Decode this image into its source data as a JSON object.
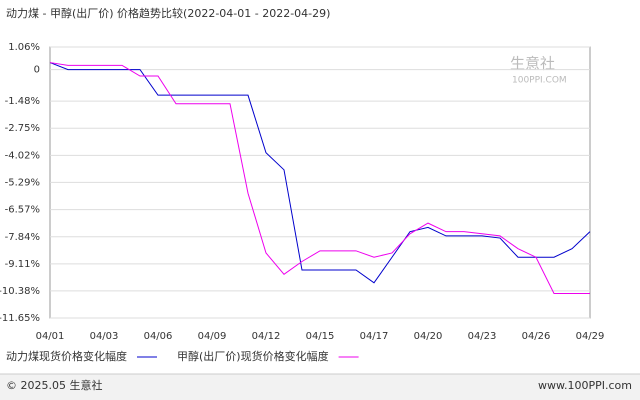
{
  "chart_data": {
    "type": "line",
    "title": "动力煤 - 甲醇(出厂价) 价格趋势比较(2022-04-01 - 2022-04-29)",
    "categories": [
      "04/01",
      null,
      null,
      "04/03",
      null,
      null,
      "04/06",
      null,
      null,
      "04/09",
      null,
      null,
      "04/12",
      null,
      null,
      "04/15",
      null,
      null,
      "04/17",
      null,
      null,
      "04/20",
      null,
      null,
      "04/23",
      null,
      null,
      "04/26",
      null,
      null,
      "04/29"
    ],
    "series": [
      {
        "name": "动力煤现货价格变化幅度",
        "color": "#0000cc",
        "values": [
          0.33,
          0,
          0,
          0,
          0,
          0,
          -1.2,
          -1.2,
          -1.2,
          -1.2,
          -1.2,
          -1.2,
          -3.9,
          -4.7,
          -9.4,
          -9.4,
          -9.4,
          -9.4,
          -10.0,
          -8.8,
          -7.6,
          -7.4,
          -7.8,
          -7.8,
          -7.8,
          -7.9,
          -8.8,
          -8.8,
          -8.8,
          -8.4,
          -7.6
        ]
      },
      {
        "name": "甲醇(出厂价)现货价格变化幅度",
        "color": "#ee00ee",
        "values": [
          0.33,
          0.2,
          0.2,
          0.2,
          0.2,
          -0.3,
          -0.3,
          -1.6,
          -1.6,
          -1.6,
          -1.6,
          -5.8,
          -8.6,
          -9.6,
          -9.0,
          -8.5,
          -8.5,
          -8.5,
          -8.8,
          -8.6,
          -7.7,
          -7.2,
          -7.6,
          -7.6,
          -7.7,
          -7.8,
          -8.4,
          -8.8,
          -10.5,
          -10.5,
          -10.5
        ]
      }
    ],
    "ylim": [
      -11.65,
      1.06
    ],
    "yticks": [
      {
        "value": 1.06,
        "label": "1.06%"
      },
      0,
      {
        "value": -1.48,
        "label": "-1.48%"
      },
      {
        "value": -2.75,
        "label": "-2.75%"
      },
      {
        "value": -4.02,
        "label": "-4.02%"
      },
      {
        "value": -5.29,
        "label": "-5.29%"
      },
      {
        "value": -6.57,
        "label": "-6.57%"
      },
      {
        "value": -7.84,
        "label": "-7.84%"
      },
      {
        "value": -9.11,
        "label": "-9.11%"
      },
      {
        "value": -10.38,
        "label": "-10.38%"
      },
      {
        "value": -11.65,
        "label": "-11.65%"
      }
    ],
    "grid": true,
    "watermark": {
      "name": "生意社",
      "site": "100PPI.COM"
    },
    "footer": {
      "copyright": "© 2025.05 生意社",
      "url": "www.100PPI.com"
    }
  }
}
